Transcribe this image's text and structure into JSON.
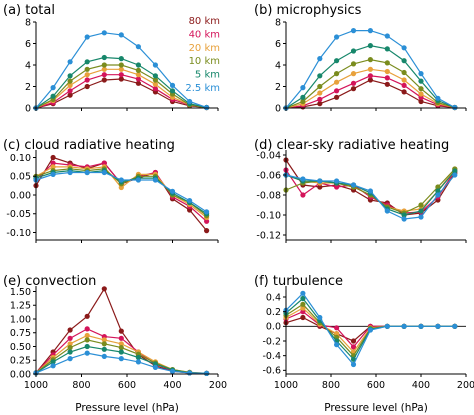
{
  "colors": [
    "#8b1a1a",
    "#d4145a",
    "#e8a13b",
    "#7a8c1e",
    "#17876b",
    "#2b8fd6"
  ],
  "legend": [
    "80 km",
    "40 km",
    "20 km",
    "10 km",
    "5 km",
    "2.5 km"
  ],
  "xlabel": "Pressure level (hPa)",
  "chart_data": [
    {
      "type": "line",
      "title": "(a) total",
      "x": [
        1000,
        925,
        850,
        775,
        700,
        625,
        550,
        475,
        400,
        325,
        250
      ],
      "xlim": [
        1000,
        200
      ],
      "ylim": [
        0,
        8
      ],
      "xticks": [],
      "yticks": [
        0,
        2,
        4,
        6,
        8
      ],
      "grid": false,
      "legend_placement": "top-right",
      "series": [
        {
          "name": "80 km",
          "values": [
            0,
            0.4,
            1.2,
            2.0,
            2.6,
            2.7,
            2.3,
            1.5,
            0.6,
            0.2,
            0.05
          ]
        },
        {
          "name": "40 km",
          "values": [
            0,
            0.5,
            1.6,
            2.6,
            3.1,
            3.1,
            2.7,
            1.8,
            0.8,
            0.3,
            0.05
          ]
        },
        {
          "name": "20 km",
          "values": [
            0,
            0.7,
            2.1,
            3.1,
            3.6,
            3.6,
            3.1,
            2.2,
            1.0,
            0.3,
            0.05
          ]
        },
        {
          "name": "10 km",
          "values": [
            0,
            0.8,
            2.5,
            3.6,
            4.0,
            4.0,
            3.5,
            2.6,
            1.3,
            0.3,
            0.05
          ]
        },
        {
          "name": "5 km",
          "values": [
            0,
            1.1,
            3.0,
            4.3,
            4.7,
            4.6,
            4.0,
            3.0,
            1.6,
            0.4,
            0.05
          ]
        },
        {
          "name": "2.5 km",
          "values": [
            0,
            1.9,
            4.3,
            6.6,
            7.0,
            6.8,
            5.7,
            4.0,
            2.1,
            0.6,
            0.05
          ]
        }
      ]
    },
    {
      "type": "line",
      "title": "(b) microphysics",
      "x": [
        1000,
        925,
        850,
        775,
        700,
        625,
        550,
        475,
        400,
        325,
        250
      ],
      "xlim": [
        1000,
        200
      ],
      "ylim": [
        0,
        8
      ],
      "xticks": [],
      "yticks": [
        0,
        2,
        4,
        6,
        8
      ],
      "grid": false,
      "series": [
        {
          "name": "80 km",
          "values": [
            0,
            0.1,
            0.4,
            1.0,
            1.8,
            2.6,
            2.2,
            1.5,
            0.6,
            0.2,
            0.05
          ]
        },
        {
          "name": "40 km",
          "values": [
            0,
            0.2,
            0.8,
            1.6,
            2.3,
            3.0,
            2.8,
            2.1,
            1.0,
            0.3,
            0.05
          ]
        },
        {
          "name": "20 km",
          "values": [
            0,
            0.4,
            1.4,
            2.4,
            3.2,
            3.6,
            3.4,
            2.6,
            1.3,
            0.4,
            0.05
          ]
        },
        {
          "name": "10 km",
          "values": [
            0,
            0.6,
            2.0,
            3.2,
            4.1,
            4.5,
            4.2,
            3.3,
            1.8,
            0.5,
            0.05
          ]
        },
        {
          "name": "5 km",
          "values": [
            0,
            1.0,
            3.0,
            4.4,
            5.3,
            5.8,
            5.5,
            4.4,
            2.5,
            0.7,
            0.05
          ]
        },
        {
          "name": "2.5 km",
          "values": [
            0,
            1.9,
            4.6,
            6.6,
            7.2,
            7.2,
            6.7,
            5.6,
            3.2,
            0.9,
            0.05
          ]
        }
      ]
    },
    {
      "type": "line",
      "title": "(c) cloud radiative heating",
      "x": [
        1000,
        925,
        850,
        775,
        700,
        625,
        550,
        475,
        400,
        325,
        250
      ],
      "xlim": [
        1000,
        200
      ],
      "ylim": [
        -0.12,
        0.12
      ],
      "xticks": [],
      "yticks": [
        -0.1,
        -0.05,
        0.0,
        0.05,
        0.1
      ],
      "grid": false,
      "series": [
        {
          "name": "80 km",
          "values": [
            0.025,
            0.1,
            0.085,
            0.07,
            0.085,
            0.03,
            0.045,
            0.06,
            -0.01,
            -0.04,
            -0.095
          ]
        },
        {
          "name": "40 km",
          "values": [
            0.04,
            0.085,
            0.08,
            0.075,
            0.085,
            0.03,
            0.05,
            0.06,
            -0.005,
            -0.03,
            -0.07
          ]
        },
        {
          "name": "20 km",
          "values": [
            0.05,
            0.075,
            0.075,
            0.07,
            0.075,
            0.02,
            0.055,
            0.055,
            0.0,
            -0.025,
            -0.06
          ]
        },
        {
          "name": "10 km",
          "values": [
            0.05,
            0.065,
            0.07,
            0.065,
            0.07,
            0.03,
            0.05,
            0.05,
            0.0,
            -0.02,
            -0.055
          ]
        },
        {
          "name": "5 km",
          "values": [
            0.045,
            0.06,
            0.065,
            0.06,
            0.065,
            0.035,
            0.045,
            0.045,
            0.005,
            -0.02,
            -0.05
          ]
        },
        {
          "name": "2.5 km",
          "values": [
            0.04,
            0.055,
            0.06,
            0.06,
            0.06,
            0.04,
            0.04,
            0.04,
            0.01,
            -0.015,
            -0.045
          ]
        }
      ]
    },
    {
      "type": "line",
      "title": "(d) clear-sky radiative heating",
      "x": [
        1000,
        925,
        850,
        775,
        700,
        625,
        550,
        475,
        400,
        325,
        250
      ],
      "xlim": [
        1000,
        200
      ],
      "ylim": [
        -0.125,
        -0.035
      ],
      "xticks": [],
      "yticks": [
        -0.04,
        -0.06,
        -0.08,
        -0.1,
        -0.12
      ],
      "grid": false,
      "series": [
        {
          "name": "80 km",
          "values": [
            -0.045,
            -0.07,
            -0.072,
            -0.07,
            -0.075,
            -0.085,
            -0.088,
            -0.1,
            -0.098,
            -0.085,
            -0.058
          ]
        },
        {
          "name": "40 km",
          "values": [
            -0.055,
            -0.08,
            -0.068,
            -0.072,
            -0.07,
            -0.082,
            -0.09,
            -0.098,
            -0.097,
            -0.082,
            -0.056
          ]
        },
        {
          "name": "20 km",
          "values": [
            -0.06,
            -0.066,
            -0.068,
            -0.068,
            -0.072,
            -0.08,
            -0.092,
            -0.096,
            -0.094,
            -0.076,
            -0.054
          ]
        },
        {
          "name": "10 km",
          "values": [
            -0.075,
            -0.068,
            -0.066,
            -0.068,
            -0.072,
            -0.08,
            -0.092,
            -0.098,
            -0.09,
            -0.072,
            -0.054
          ]
        },
        {
          "name": "5 km",
          "values": [
            -0.06,
            -0.066,
            -0.066,
            -0.068,
            -0.07,
            -0.078,
            -0.094,
            -0.1,
            -0.096,
            -0.076,
            -0.056
          ]
        },
        {
          "name": "2.5 km",
          "values": [
            -0.06,
            -0.064,
            -0.066,
            -0.066,
            -0.07,
            -0.076,
            -0.096,
            -0.104,
            -0.102,
            -0.08,
            -0.06
          ]
        }
      ]
    },
    {
      "type": "line",
      "title": "(e) convection",
      "x": [
        1000,
        925,
        850,
        775,
        700,
        625,
        550,
        475,
        400,
        325,
        250
      ],
      "xlim": [
        1000,
        200
      ],
      "ylim": [
        0,
        1.6
      ],
      "xticks": [
        1000,
        800,
        600,
        400,
        200
      ],
      "yticks": [
        0,
        0.25,
        0.5,
        0.75,
        1.0,
        1.25,
        1.5
      ],
      "grid": false,
      "series": [
        {
          "name": "80 km",
          "values": [
            0.02,
            0.4,
            0.8,
            1.05,
            1.55,
            0.78,
            0.35,
            0.15,
            0.05,
            0.02,
            0.01
          ]
        },
        {
          "name": "40 km",
          "values": [
            0.02,
            0.35,
            0.65,
            0.82,
            0.68,
            0.65,
            0.4,
            0.18,
            0.06,
            0.02,
            0.01
          ]
        },
        {
          "name": "20 km",
          "values": [
            0.02,
            0.3,
            0.55,
            0.7,
            0.62,
            0.55,
            0.4,
            0.22,
            0.08,
            0.03,
            0.01
          ]
        },
        {
          "name": "10 km",
          "values": [
            0.02,
            0.26,
            0.48,
            0.62,
            0.55,
            0.48,
            0.36,
            0.2,
            0.08,
            0.03,
            0.01
          ]
        },
        {
          "name": "5 km",
          "values": [
            0.02,
            0.22,
            0.4,
            0.5,
            0.45,
            0.4,
            0.3,
            0.18,
            0.07,
            0.02,
            0.01
          ]
        },
        {
          "name": "2.5 km",
          "values": [
            0.02,
            0.15,
            0.28,
            0.38,
            0.32,
            0.28,
            0.22,
            0.12,
            0.05,
            0.02,
            0.01
          ]
        }
      ]
    },
    {
      "type": "line",
      "title": "(f) turbulence",
      "x": [
        1000,
        925,
        850,
        775,
        700,
        625,
        550,
        475,
        400,
        325,
        250
      ],
      "xlim": [
        1000,
        200
      ],
      "ylim": [
        -0.65,
        0.55
      ],
      "xticks": [
        1000,
        800,
        600,
        400,
        200
      ],
      "yticks": [
        0.4,
        0.2,
        0.0,
        -0.2,
        -0.4,
        -0.6
      ],
      "grid": false,
      "zero_line": true,
      "series": [
        {
          "name": "80 km",
          "values": [
            0.05,
            0.12,
            0.0,
            -0.1,
            -0.2,
            0.0,
            0.0,
            0.0,
            0.0,
            0.0,
            0.0
          ]
        },
        {
          "name": "40 km",
          "values": [
            0.1,
            0.2,
            0.02,
            -0.02,
            -0.28,
            0.0,
            0.0,
            0.0,
            0.0,
            0.0,
            0.0
          ]
        },
        {
          "name": "20 km",
          "values": [
            0.12,
            0.25,
            0.03,
            -0.1,
            -0.35,
            -0.02,
            0.0,
            0.0,
            0.0,
            0.0,
            0.0
          ]
        },
        {
          "name": "10 km",
          "values": [
            0.15,
            0.3,
            0.05,
            -0.15,
            -0.4,
            -0.03,
            0.0,
            0.0,
            0.0,
            0.0,
            0.0
          ]
        },
        {
          "name": "5 km",
          "values": [
            0.18,
            0.38,
            0.08,
            -0.2,
            -0.45,
            -0.04,
            0.0,
            0.0,
            0.0,
            0.0,
            0.0
          ]
        },
        {
          "name": "2.5 km",
          "values": [
            0.22,
            0.45,
            0.12,
            -0.25,
            -0.52,
            -0.05,
            0.0,
            0.0,
            0.0,
            0.0,
            0.0
          ]
        }
      ]
    }
  ]
}
